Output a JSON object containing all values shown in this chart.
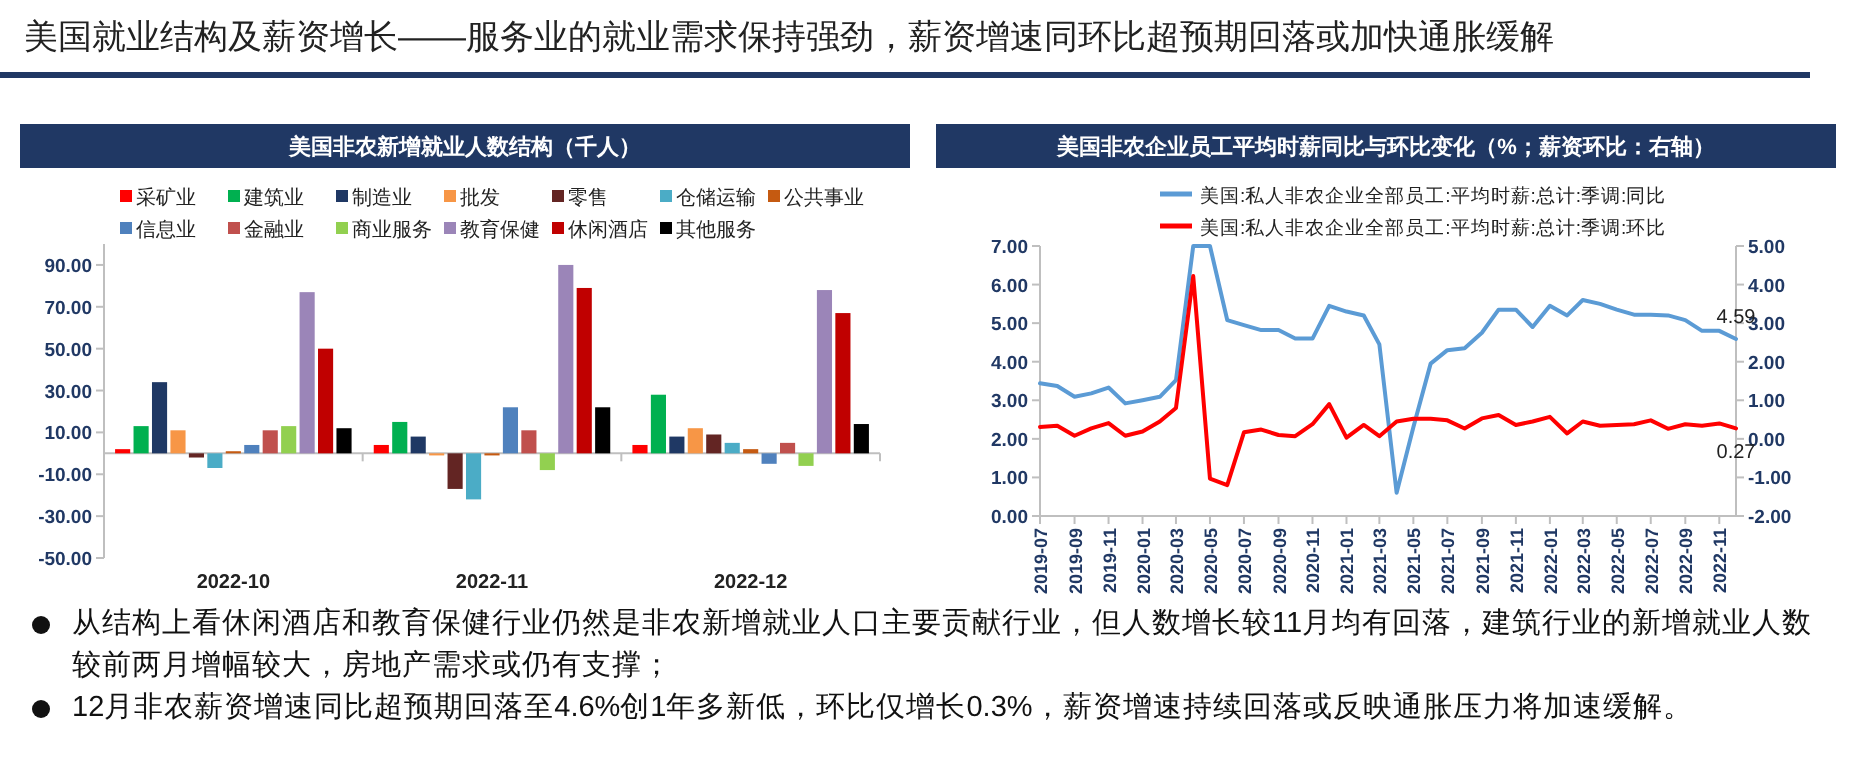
{
  "chart_data": [
    {
      "type": "other",
      "title": "美国就业结构及薪资增长——服务业的就业需求保持强劲，薪资增速同环比超预期回落或加快通胀缓解",
      "annotations": [
        "从结构上看休闲酒店和教育保健行业仍然是非农新增就业人口主要贡献行业，但人数增长较11月均有回落，建筑行业的新增就业人数较前两月增幅较大，房地产需求或仍有支撑；",
        "12月非农薪资增速同比超预期回落至4.6%创1年多新低，环比仅增长0.3%，薪资增速持续回落或反映通胀压力将加速缓解。"
      ]
    },
    {
      "type": "bar",
      "title": "美国非农新增就业人数结构（千人）",
      "categories": [
        "2022-10",
        "2022-11",
        "2022-12"
      ],
      "legend": "top",
      "grid": false,
      "ylim": [
        -50,
        100
      ],
      "yticks": [
        {
          "value": -50,
          "label": "-50.00"
        },
        {
          "value": -30,
          "label": "-30.00"
        },
        {
          "value": -10,
          "label": "-10.00"
        },
        {
          "value": 10,
          "label": "10.00"
        },
        {
          "value": 30,
          "label": "30.00"
        },
        {
          "value": 50,
          "label": "50.00"
        },
        {
          "value": 70,
          "label": "70.00"
        },
        {
          "value": 90,
          "label": "90.00"
        }
      ],
      "series": [
        {
          "name": "采矿业",
          "color": "#ff0000",
          "values": [
            2,
            4,
            4
          ]
        },
        {
          "name": "建筑业",
          "color": "#00b050",
          "values": [
            13,
            15,
            28
          ]
        },
        {
          "name": "制造业",
          "color": "#1f3864",
          "values": [
            34,
            8,
            8
          ]
        },
        {
          "name": "批发",
          "color": "#f79646",
          "values": [
            11,
            -1,
            12
          ]
        },
        {
          "name": "零售",
          "color": "#632523",
          "values": [
            -2,
            -17,
            9
          ]
        },
        {
          "name": "仓储运输",
          "color": "#4bacc6",
          "values": [
            -7,
            -22,
            5
          ]
        },
        {
          "name": "公共事业",
          "color": "#c55a11",
          "values": [
            1,
            -1,
            2
          ]
        },
        {
          "name": "信息业",
          "color": "#4f81bd",
          "values": [
            4,
            22,
            -5
          ]
        },
        {
          "name": "金融业",
          "color": "#c0504d",
          "values": [
            11,
            11,
            5
          ]
        },
        {
          "name": "商业服务",
          "color": "#92d050",
          "values": [
            13,
            -8,
            -6
          ]
        },
        {
          "name": "教育保健",
          "color": "#9b85b8",
          "values": [
            77,
            90,
            78
          ]
        },
        {
          "name": "休闲酒店",
          "color": "#c00000",
          "values": [
            50,
            79,
            67
          ]
        },
        {
          "name": "其他服务",
          "color": "#000000",
          "values": [
            12,
            22,
            14
          ]
        }
      ]
    },
    {
      "type": "line",
      "title": "美国非农企业员工平均时薪同比与环比变化（%；薪资环比：右轴）",
      "legend": "top",
      "grid": false,
      "x": [
        "2019-07",
        "2019-08",
        "2019-09",
        "2019-10",
        "2019-11",
        "2019-12",
        "2020-01",
        "2020-02",
        "2020-03",
        "2020-04",
        "2020-05",
        "2020-06",
        "2020-07",
        "2020-08",
        "2020-09",
        "2020-10",
        "2020-11",
        "2020-12",
        "2021-01",
        "2021-02",
        "2021-03",
        "2021-04",
        "2021-05",
        "2021-06",
        "2021-07",
        "2021-08",
        "2021-09",
        "2021-10",
        "2021-11",
        "2021-12",
        "2022-01",
        "2022-02",
        "2022-03",
        "2022-04",
        "2022-05",
        "2022-06",
        "2022-07",
        "2022-08",
        "2022-09",
        "2022-10",
        "2022-11",
        "2022-12"
      ],
      "xlim": [
        "2019-07",
        "2022-12"
      ],
      "xticks": [
        "2019-07",
        "2019-09",
        "2019-11",
        "2020-01",
        "2020-03",
        "2020-05",
        "2020-07",
        "2020-09",
        "2020-11",
        "2021-01",
        "2021-03",
        "2021-05",
        "2021-07",
        "2021-09",
        "2021-11",
        "2022-01",
        "2022-03",
        "2022-05",
        "2022-07",
        "2022-09",
        "2022-11"
      ],
      "ylim": [
        0,
        7
      ],
      "yticks": [
        {
          "value": 0,
          "label": "0.00"
        },
        {
          "value": 1,
          "label": "1.00"
        },
        {
          "value": 2,
          "label": "2.00"
        },
        {
          "value": 3,
          "label": "3.00"
        },
        {
          "value": 4,
          "label": "4.00"
        },
        {
          "value": 5,
          "label": "5.00"
        },
        {
          "value": 6,
          "label": "6.00"
        },
        {
          "value": 7,
          "label": "7.00"
        }
      ],
      "y2lim": [
        -2,
        5
      ],
      "y2ticks": [
        {
          "value": -2,
          "label": "-2.00"
        },
        {
          "value": -1,
          "label": "-1.00"
        },
        {
          "value": 0,
          "label": "0.00"
        },
        {
          "value": 1,
          "label": "1.00"
        },
        {
          "value": 2,
          "label": "2.00"
        },
        {
          "value": 3,
          "label": "3.00"
        },
        {
          "value": 4,
          "label": "4.00"
        },
        {
          "value": 5,
          "label": "5.00"
        }
      ],
      "series": [
        {
          "name": "美国:私人非农企业全部员工:平均时薪:总计:季调:同比",
          "color": "#5b9bd5",
          "values": [
            3.44,
            3.37,
            3.09,
            3.18,
            3.33,
            2.92,
            3.0,
            3.09,
            3.52,
            7.0,
            7.0,
            5.08,
            4.95,
            4.82,
            4.82,
            4.6,
            4.6,
            5.45,
            5.3,
            5.2,
            4.45,
            0.6,
            2.3,
            3.95,
            4.3,
            4.35,
            4.75,
            5.35,
            5.35,
            4.9,
            5.45,
            5.2,
            5.6,
            5.5,
            5.35,
            5.22,
            5.22,
            5.2,
            5.08,
            4.8,
            4.8,
            4.59
          ],
          "value_labels": [
            null,
            null,
            null,
            null,
            null,
            null,
            null,
            null,
            null,
            null,
            null,
            null,
            null,
            null,
            null,
            null,
            null,
            null,
            null,
            null,
            null,
            null,
            null,
            null,
            null,
            null,
            null,
            null,
            null,
            null,
            null,
            null,
            null,
            null,
            null,
            null,
            null,
            null,
            null,
            null,
            null,
            "4.59"
          ]
        },
        {
          "name": "美国:私人非农企业全部员工:平均时薪:总计:季调:环比",
          "color": "#ff0000",
          "axis": "y2",
          "values": [
            0.31,
            0.34,
            0.08,
            0.27,
            0.41,
            0.08,
            0.19,
            0.45,
            0.8,
            4.22,
            -1.03,
            -1.2,
            0.17,
            0.24,
            0.1,
            0.07,
            0.38,
            0.9,
            0.03,
            0.36,
            0.07,
            0.45,
            0.52,
            0.52,
            0.48,
            0.27,
            0.53,
            0.62,
            0.36,
            0.45,
            0.57,
            0.14,
            0.45,
            0.34,
            0.36,
            0.38,
            0.48,
            0.26,
            0.38,
            0.34,
            0.4,
            0.27
          ],
          "value_labels": [
            null,
            null,
            null,
            null,
            null,
            null,
            null,
            null,
            null,
            null,
            null,
            null,
            null,
            null,
            null,
            null,
            null,
            null,
            null,
            null,
            null,
            null,
            null,
            null,
            null,
            null,
            null,
            null,
            null,
            null,
            null,
            null,
            null,
            null,
            null,
            null,
            null,
            null,
            null,
            null,
            null,
            "0.27"
          ]
        }
      ]
    }
  ]
}
